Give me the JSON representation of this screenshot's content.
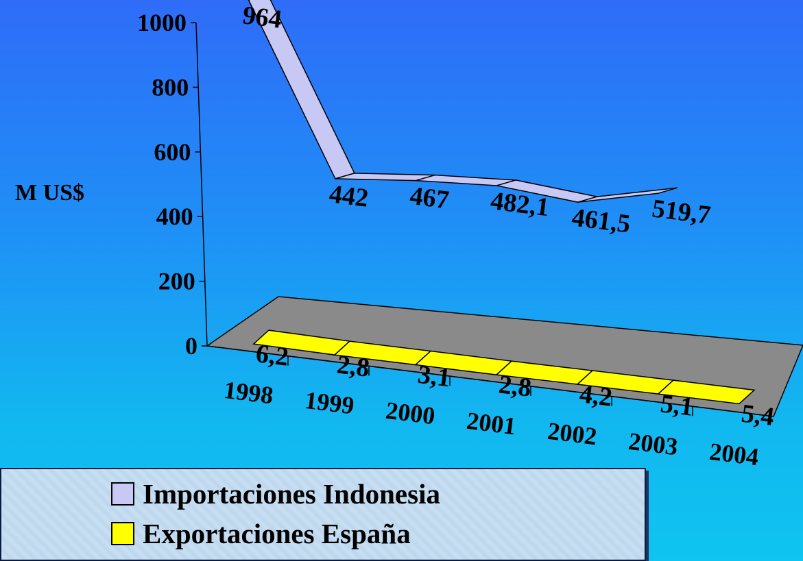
{
  "chart_data": {
    "type": "line",
    "ylabel": "M US$",
    "ylim": [
      0,
      1000
    ],
    "yticks": [
      "0",
      "200",
      "400",
      "600",
      "800",
      "1000"
    ],
    "categories": [
      "1998",
      "1999",
      "2000",
      "2001",
      "2002",
      "2003",
      "2004"
    ],
    "series": [
      {
        "name": "Importaciones Indonesia",
        "color": "#c8c8f4",
        "values": [
          964,
          442,
          467,
          482.1,
          461.5,
          519.7,
          null
        ],
        "labels": [
          "964",
          "442",
          "467",
          "482,1",
          "461,5",
          "519,7",
          ""
        ]
      },
      {
        "name": "Exportaciones España",
        "color": "#ffff00",
        "values": [
          6.2,
          2.8,
          3.1,
          2.8,
          4.2,
          5.1,
          5.4
        ],
        "labels": [
          "6,2",
          "2,8",
          "3,1",
          "2,8",
          "4,2",
          "5,1",
          "5,4"
        ]
      }
    ]
  }
}
